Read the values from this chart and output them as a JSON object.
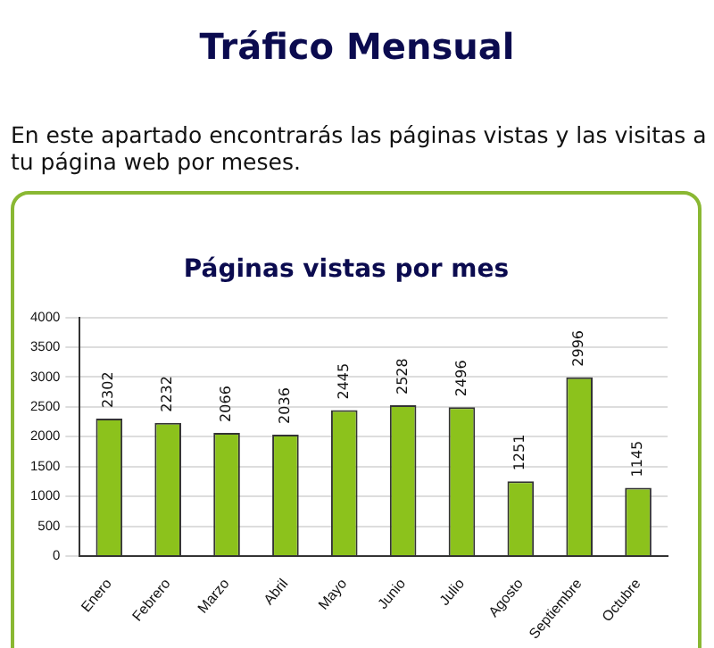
{
  "chart_data": {
    "type": "bar",
    "title": "Páginas vistas por mes",
    "annotations": [
      "Tráfico Mensual",
      "En este apartado encontrarás las páginas vistas y las visitas a tu página web por meses."
    ],
    "categories": [
      "Enero",
      "Febrero",
      "Marzo",
      "Abril",
      "Mayo",
      "Junio",
      "Julio",
      "Agosto",
      "Septiembre",
      "Octubre"
    ],
    "values": [
      2302,
      2232,
      2066,
      2036,
      2445,
      2528,
      2496,
      1251,
      2996,
      1145
    ],
    "color": "#8cc21c",
    "ylim": [
      0,
      4000
    ],
    "yticks": [
      0,
      500,
      1000,
      1500,
      2000,
      2500,
      3000,
      3500,
      4000
    ],
    "grid": "y",
    "data_labels": true,
    "legend": false
  }
}
